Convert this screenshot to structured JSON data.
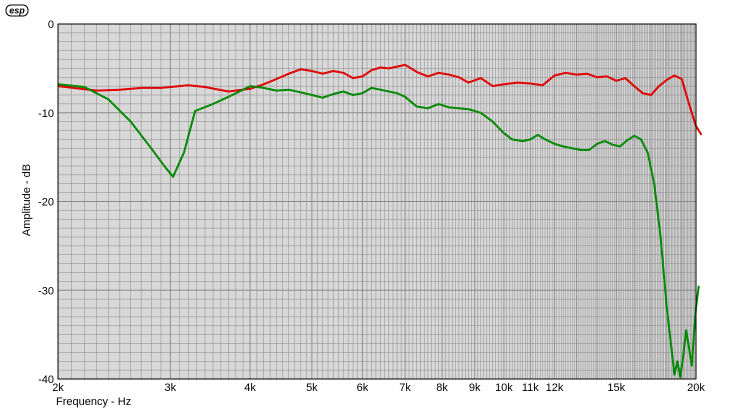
{
  "logo": {
    "text": "esp"
  },
  "chart_data": {
    "type": "line",
    "xscale": "log",
    "xlim": [
      2000,
      20000
    ],
    "ylim": [
      -40,
      0
    ],
    "grid": true,
    "xlabel": "Frequency - Hz",
    "ylabel": "Amplitude - dB",
    "xticks": [
      {
        "value": 2000,
        "label": "2k"
      },
      {
        "value": 3000,
        "label": "3k"
      },
      {
        "value": 4000,
        "label": "4k"
      },
      {
        "value": 5000,
        "label": "5k"
      },
      {
        "value": 6000,
        "label": "6k"
      },
      {
        "value": 7000,
        "label": "7k"
      },
      {
        "value": 8000,
        "label": "8k"
      },
      {
        "value": 9000,
        "label": "9k"
      },
      {
        "value": 10000,
        "label": "10k"
      },
      {
        "value": 11000,
        "label": "11k"
      },
      {
        "value": 12000,
        "label": "12k"
      },
      {
        "value": 15000,
        "label": "15k"
      },
      {
        "value": 20000,
        "label": "20k"
      }
    ],
    "yticks": [
      {
        "value": 0,
        "label": "0"
      },
      {
        "value": -10,
        "label": "-10"
      },
      {
        "value": -20,
        "label": "-20"
      },
      {
        "value": -30,
        "label": "-30"
      },
      {
        "value": -40,
        "label": "-40"
      }
    ],
    "colors": {
      "plot_bg": "#d8d8d8",
      "grid": "#8a8a8a",
      "red": "#e00000",
      "green": "#008800"
    },
    "series": [
      {
        "color": "#e00000",
        "points": [
          [
            2000,
            -7.0
          ],
          [
            2300,
            -7.5
          ],
          [
            2500,
            -7.4
          ],
          [
            2700,
            -7.2
          ],
          [
            2900,
            -7.2
          ],
          [
            3000,
            -7.1
          ],
          [
            3200,
            -6.9
          ],
          [
            3400,
            -7.1
          ],
          [
            3700,
            -7.6
          ],
          [
            4000,
            -7.3
          ],
          [
            4200,
            -6.8
          ],
          [
            4400,
            -6.2
          ],
          [
            4600,
            -5.6
          ],
          [
            4800,
            -5.1
          ],
          [
            5000,
            -5.3
          ],
          [
            5200,
            -5.6
          ],
          [
            5400,
            -5.3
          ],
          [
            5600,
            -5.5
          ],
          [
            5800,
            -6.1
          ],
          [
            6000,
            -5.9
          ],
          [
            6200,
            -5.2
          ],
          [
            6400,
            -4.9
          ],
          [
            6600,
            -5.0
          ],
          [
            6800,
            -4.8
          ],
          [
            7000,
            -4.6
          ],
          [
            7300,
            -5.4
          ],
          [
            7600,
            -5.9
          ],
          [
            7900,
            -5.5
          ],
          [
            8200,
            -5.7
          ],
          [
            8500,
            -6.0
          ],
          [
            8800,
            -6.6
          ],
          [
            9200,
            -6.1
          ],
          [
            9600,
            -7.0
          ],
          [
            10000,
            -6.8
          ],
          [
            10500,
            -6.6
          ],
          [
            11000,
            -6.7
          ],
          [
            11500,
            -6.9
          ],
          [
            12000,
            -5.8
          ],
          [
            12500,
            -5.5
          ],
          [
            13000,
            -5.7
          ],
          [
            13500,
            -5.6
          ],
          [
            14000,
            -6.0
          ],
          [
            14500,
            -5.9
          ],
          [
            15000,
            -6.4
          ],
          [
            15500,
            -6.1
          ],
          [
            16000,
            -7.0
          ],
          [
            16500,
            -7.8
          ],
          [
            17000,
            -8.0
          ],
          [
            17500,
            -7.0
          ],
          [
            18000,
            -6.3
          ],
          [
            18500,
            -5.8
          ],
          [
            19000,
            -6.2
          ],
          [
            19500,
            -9.0
          ],
          [
            20000,
            -11.5
          ],
          [
            20400,
            -12.5
          ]
        ]
      },
      {
        "color": "#008800",
        "points": [
          [
            2000,
            -6.8
          ],
          [
            2200,
            -7.1
          ],
          [
            2400,
            -8.5
          ],
          [
            2600,
            -11.0
          ],
          [
            2800,
            -14.0
          ],
          [
            2950,
            -16.2
          ],
          [
            3030,
            -17.2
          ],
          [
            3150,
            -14.5
          ],
          [
            3280,
            -9.8
          ],
          [
            3500,
            -9.0
          ],
          [
            3700,
            -8.2
          ],
          [
            3850,
            -7.6
          ],
          [
            4000,
            -7.0
          ],
          [
            4200,
            -7.2
          ],
          [
            4400,
            -7.5
          ],
          [
            4600,
            -7.4
          ],
          [
            4800,
            -7.7
          ],
          [
            5000,
            -8.0
          ],
          [
            5200,
            -8.3
          ],
          [
            5400,
            -7.9
          ],
          [
            5600,
            -7.6
          ],
          [
            5800,
            -8.0
          ],
          [
            6000,
            -7.8
          ],
          [
            6200,
            -7.2
          ],
          [
            6400,
            -7.4
          ],
          [
            6600,
            -7.6
          ],
          [
            6800,
            -7.8
          ],
          [
            7000,
            -8.2
          ],
          [
            7300,
            -9.3
          ],
          [
            7600,
            -9.5
          ],
          [
            7900,
            -9.0
          ],
          [
            8200,
            -9.4
          ],
          [
            8500,
            -9.5
          ],
          [
            8800,
            -9.6
          ],
          [
            9200,
            -10.0
          ],
          [
            9600,
            -11.0
          ],
          [
            10000,
            -12.3
          ],
          [
            10300,
            -13.0
          ],
          [
            10700,
            -13.2
          ],
          [
            11000,
            -13.0
          ],
          [
            11300,
            -12.5
          ],
          [
            11600,
            -13.0
          ],
          [
            12000,
            -13.5
          ],
          [
            12400,
            -13.8
          ],
          [
            12800,
            -14.0
          ],
          [
            13200,
            -14.2
          ],
          [
            13600,
            -14.2
          ],
          [
            14000,
            -13.5
          ],
          [
            14400,
            -13.2
          ],
          [
            14800,
            -13.6
          ],
          [
            15200,
            -13.8
          ],
          [
            15600,
            -13.1
          ],
          [
            16000,
            -12.6
          ],
          [
            16400,
            -13.0
          ],
          [
            16800,
            -14.5
          ],
          [
            17200,
            -18.0
          ],
          [
            17600,
            -24.0
          ],
          [
            18000,
            -32.0
          ],
          [
            18300,
            -36.5
          ],
          [
            18500,
            -39.5
          ],
          [
            18700,
            -38.0
          ],
          [
            18900,
            -39.8
          ],
          [
            19100,
            -37.5
          ],
          [
            19300,
            -34.5
          ],
          [
            19500,
            -36.5
          ],
          [
            19700,
            -38.5
          ],
          [
            19850,
            -35.0
          ],
          [
            20000,
            -32.0
          ],
          [
            20200,
            -29.5
          ]
        ]
      }
    ]
  }
}
